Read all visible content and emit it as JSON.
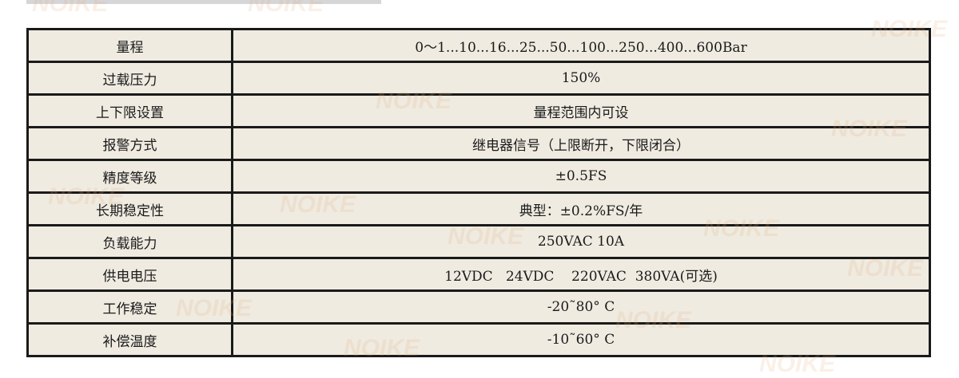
{
  "watermark": "NOIKE",
  "specs": [
    {
      "label": "量程",
      "value": "0～1...10...16...25...50...100...250...400...600Bar"
    },
    {
      "label": "过载压力",
      "value": "150%"
    },
    {
      "label": "上下限设置",
      "value": "量程范围内可设"
    },
    {
      "label": "报警方式",
      "value": "继电器信号（上限断开，下限闭合）"
    },
    {
      "label": "精度等级",
      "value": "±0.5FS"
    },
    {
      "label": "长期稳定性",
      "value": "典型：±0.2%FS/年"
    },
    {
      "label": "负载能力",
      "value": "250VAC 10A"
    },
    {
      "label": "供电电压",
      "value": "12VDC   24VDC    220VAC  380VA(可选)"
    },
    {
      "label": "工作稳定",
      "value": "-20˜80° C"
    },
    {
      "label": "补偿温度",
      "value": "-10˜60° C"
    }
  ]
}
